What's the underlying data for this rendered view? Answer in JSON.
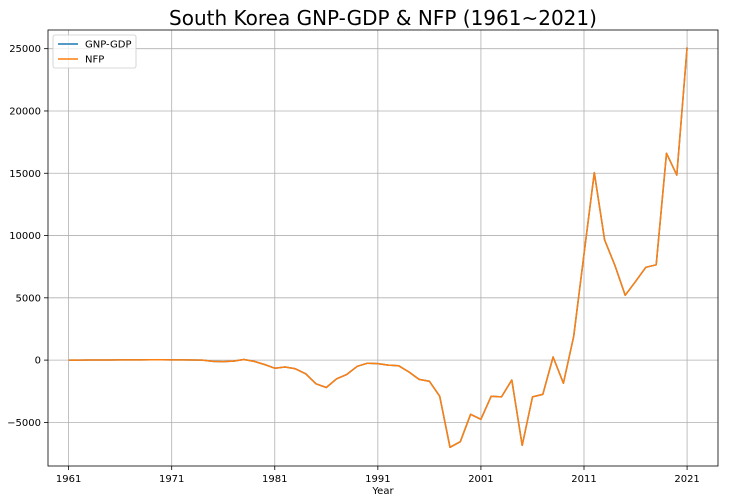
{
  "chart_data": {
    "type": "line",
    "title": "South Korea GNP-GDP & NFP (1961~2021)",
    "xlabel": "Year",
    "ylabel": "",
    "xlim": [
      1959,
      2024
    ],
    "ylim": [
      -8500,
      26500
    ],
    "xticks": [
      1961,
      1971,
      1981,
      1991,
      2001,
      2011,
      2021
    ],
    "yticks": [
      -5000,
      0,
      5000,
      10000,
      15000,
      20000,
      25000
    ],
    "grid": true,
    "legend_position": "top-left",
    "x": [
      1961,
      1962,
      1963,
      1964,
      1965,
      1966,
      1967,
      1968,
      1969,
      1970,
      1971,
      1972,
      1973,
      1974,
      1975,
      1976,
      1977,
      1978,
      1979,
      1980,
      1981,
      1982,
      1983,
      1984,
      1985,
      1986,
      1987,
      1988,
      1989,
      1990,
      1991,
      1992,
      1993,
      1994,
      1995,
      1996,
      1997,
      1998,
      1999,
      2000,
      2001,
      2002,
      2003,
      2004,
      2005,
      2006,
      2007,
      2008,
      2009,
      2010,
      2011,
      2012,
      2013,
      2014,
      2015,
      2016,
      2017,
      2018,
      2019,
      2020,
      2021
    ],
    "series": [
      {
        "name": "GNP-GDP",
        "color": "#1f77b4",
        "values": [
          0,
          5,
          8,
          10,
          12,
          15,
          18,
          20,
          22,
          25,
          20,
          15,
          10,
          5,
          -100,
          -120,
          -80,
          50,
          -100,
          -350,
          -650,
          -550,
          -700,
          -1100,
          -1900,
          -2200,
          -1500,
          -1150,
          -500,
          -250,
          -280,
          -400,
          -450,
          -950,
          -1550,
          -1700,
          -2900,
          -7000,
          -6550,
          -4350,
          -4750,
          -2900,
          -2950,
          -1600,
          -6850,
          -2950,
          -2750,
          250,
          -1850,
          1900,
          8500,
          15050,
          9650,
          7600,
          5200,
          6300,
          7450,
          7650,
          16600,
          14850,
          25100
        ]
      },
      {
        "name": "NFP",
        "color": "#ff7f0e",
        "values": [
          0,
          5,
          8,
          10,
          12,
          15,
          18,
          20,
          22,
          25,
          20,
          15,
          10,
          5,
          -100,
          -120,
          -80,
          50,
          -100,
          -350,
          -650,
          -550,
          -700,
          -1100,
          -1900,
          -2200,
          -1500,
          -1150,
          -500,
          -250,
          -280,
          -400,
          -450,
          -950,
          -1550,
          -1700,
          -2900,
          -7000,
          -6550,
          -4350,
          -4750,
          -2900,
          -2950,
          -1600,
          -6850,
          -2950,
          -2750,
          250,
          -1850,
          1900,
          8500,
          15050,
          9650,
          7600,
          5200,
          6300,
          7450,
          7650,
          16600,
          14850,
          25100
        ]
      }
    ]
  }
}
